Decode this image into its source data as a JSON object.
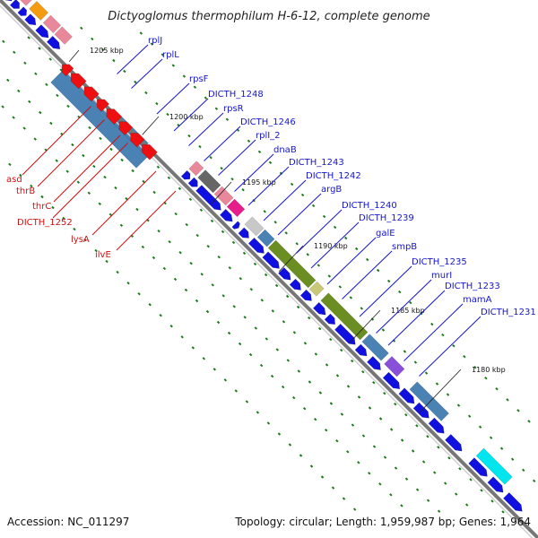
{
  "title": "Dictyoglomus thermophilum H-6-12, complete genome",
  "footer": {
    "accession": "Accession: NC_011297",
    "topology": "Topology: circular; Length: 1,959,987 bp; Genes: 1,964"
  },
  "colors": {
    "backbone": "#777777",
    "forward_cds": "#1010e0",
    "reverse_cds": "#ee1010",
    "label_forward": "#1515cc",
    "label_reverse": "#cc1010",
    "gc_dots": "#1a7a1a",
    "cog_blue": "#4a82b4",
    "cog_olive": "#6b8e23",
    "cog_pink": "#e8889a",
    "cog_magenta": "#e61e8c",
    "cog_gray": "#666666",
    "cog_orange": "#f39c12",
    "cog_cyan": "#00e5ee",
    "cog_purple": "#8a4fd8",
    "cog_khaki": "#c8c878"
  },
  "tick_labels": [
    "1205 kbp",
    "1200 kbp",
    "1195 kbp",
    "1190 kbp",
    "1185 kbp",
    "1180 kbp"
  ],
  "forward_labels": [
    "rplJ",
    "rplL",
    "rpsF",
    "DICTH_1248",
    "rpsR",
    "DICTH_1246",
    "rplI_2",
    "dnaB",
    "DICTH_1243",
    "DICTH_1242",
    "argB",
    "DICTH_1240",
    "DICTH_1239",
    "galE",
    "smpB",
    "DICTH_1235",
    "murI",
    "DICTH_1233",
    "mamA",
    "DICTH_1231"
  ],
  "reverse_labels": [
    "asd",
    "thrB",
    "thrC",
    "DICTH_1252",
    "lysA",
    "ilvE"
  ]
}
